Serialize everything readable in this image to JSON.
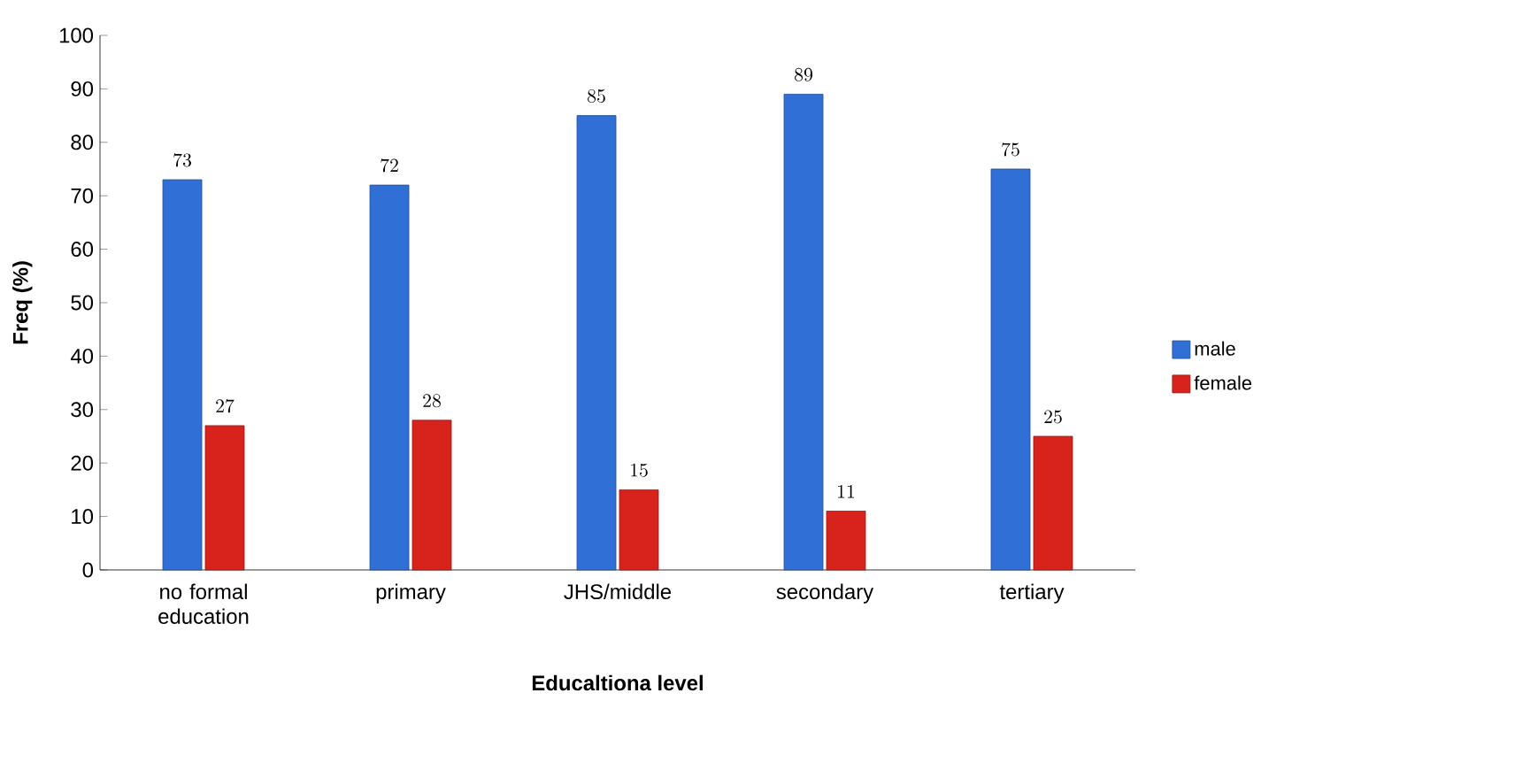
{
  "chart_data": {
    "type": "bar",
    "xlabel": "Educaltiona level",
    "ylabel": "Freq (%)",
    "categories": [
      "no formal education",
      "primary",
      "JHS/middle",
      "secondary",
      "tertiary"
    ],
    "series": [
      {
        "name": "male",
        "color": "#2f6fd6",
        "values": [
          73,
          72,
          85,
          89,
          75
        ]
      },
      {
        "name": "female",
        "color": "#d8231c",
        "values": [
          27,
          28,
          15,
          11,
          25
        ]
      }
    ],
    "ylim": [
      0,
      100
    ],
    "yticks": [
      0,
      10,
      20,
      30,
      40,
      50,
      60,
      70,
      80,
      90,
      100
    ],
    "grid": false,
    "legend": "right",
    "data_labels": true
  }
}
